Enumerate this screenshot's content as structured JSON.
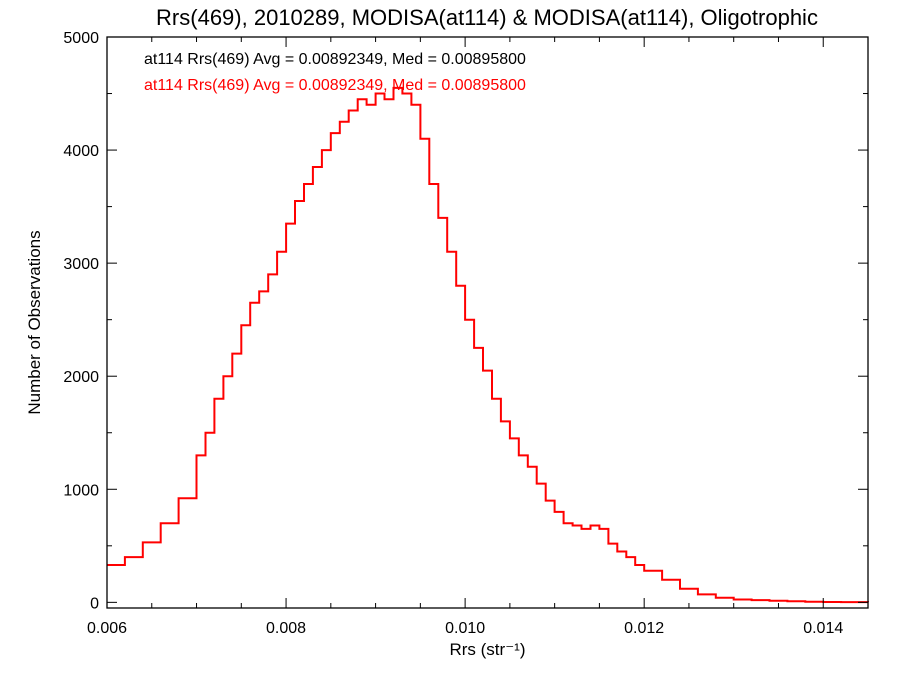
{
  "chart_data": {
    "type": "line",
    "title": "Rrs(469), 2010289, MODISA(at114) & MODISA(at114), Oligotrophic",
    "xlabel": "Rrs (str⁻¹)",
    "ylabel": "Number of Observations",
    "xlim": [
      0.006,
      0.0145
    ],
    "ylim": [
      -50,
      5000
    ],
    "xticks": [
      0.006,
      0.008,
      0.01,
      0.012,
      0.014
    ],
    "xtick_labels": [
      "0.006",
      "0.008",
      "0.010",
      "0.012",
      "0.014"
    ],
    "yticks": [
      0,
      1000,
      2000,
      3000,
      4000,
      5000
    ],
    "ytick_labels": [
      "0",
      "1000",
      "2000",
      "3000",
      "4000",
      "5000"
    ],
    "grid": false,
    "legend": "top-left",
    "annotations": [
      {
        "text": "at114 Rrs(469) Avg = 0.00892349, Med = 0.00895800",
        "color": "#000000"
      },
      {
        "text": "at114 Rrs(469) Avg = 0.00892349, Med = 0.00895800",
        "color": "#ff0000"
      }
    ],
    "series": [
      {
        "color": "#ff0000",
        "step": true,
        "x": [
          0.006,
          0.0062,
          0.0064,
          0.0066,
          0.0068,
          0.007,
          0.0071,
          0.0072,
          0.0073,
          0.0074,
          0.0075,
          0.0076,
          0.0077,
          0.0078,
          0.0079,
          0.008,
          0.0081,
          0.0082,
          0.0083,
          0.0084,
          0.0085,
          0.0086,
          0.0087,
          0.0088,
          0.0089,
          0.009,
          0.0091,
          0.0092,
          0.0093,
          0.0094,
          0.0095,
          0.0096,
          0.0097,
          0.0098,
          0.0099,
          0.01,
          0.0101,
          0.0102,
          0.0103,
          0.0104,
          0.0105,
          0.0106,
          0.0107,
          0.0108,
          0.0109,
          0.011,
          0.0111,
          0.0112,
          0.0113,
          0.0114,
          0.0115,
          0.0116,
          0.0117,
          0.0118,
          0.0119,
          0.012,
          0.0122,
          0.0124,
          0.0126,
          0.0128,
          0.013,
          0.0132,
          0.0134,
          0.0136,
          0.0138,
          0.014,
          0.0142,
          0.0145
        ],
        "y": [
          330,
          400,
          530,
          700,
          920,
          1300,
          1500,
          1800,
          2000,
          2200,
          2450,
          2650,
          2750,
          2900,
          3100,
          3350,
          3550,
          3700,
          3850,
          4000,
          4150,
          4250,
          4350,
          4450,
          4400,
          4500,
          4450,
          4550,
          4500,
          4400,
          4100,
          3700,
          3400,
          3100,
          2800,
          2500,
          2250,
          2050,
          1800,
          1600,
          1450,
          1300,
          1200,
          1050,
          900,
          800,
          700,
          680,
          650,
          680,
          650,
          520,
          450,
          400,
          330,
          280,
          200,
          120,
          70,
          40,
          25,
          20,
          15,
          10,
          5,
          3,
          2,
          0
        ]
      }
    ]
  }
}
